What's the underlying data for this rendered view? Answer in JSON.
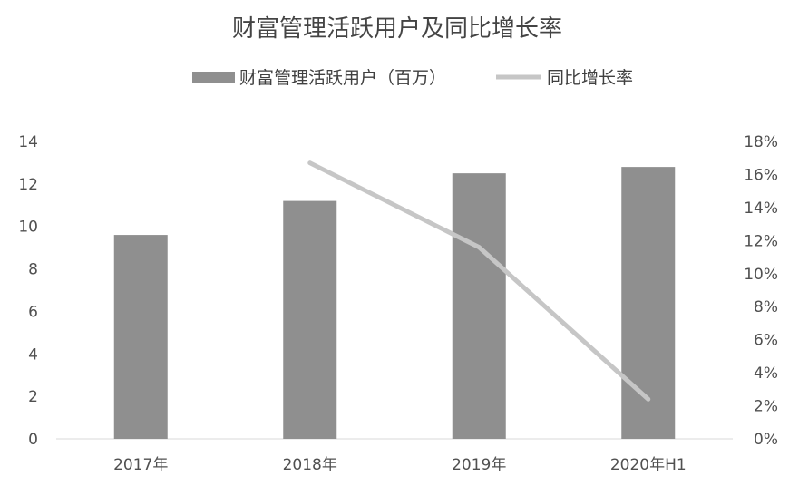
{
  "chart_data": {
    "type": "bar",
    "title": "财富管理活跃用户及同比增长率",
    "categories": [
      "2017年",
      "2018年",
      "2019年",
      "2020年H1"
    ],
    "series": [
      {
        "name": "财富管理活跃用户（百万）",
        "type": "bar",
        "axis": "left",
        "color": "#8f8f8f",
        "values": [
          9.6,
          11.2,
          12.5,
          12.8
        ]
      },
      {
        "name": "同比增长率",
        "type": "line",
        "axis": "right",
        "color": "#c6c6c6",
        "values": [
          null,
          16.7,
          11.6,
          2.4
        ]
      }
    ],
    "y_left": {
      "ylim": [
        0,
        14
      ],
      "ticks": [
        "0",
        "2",
        "4",
        "6",
        "8",
        "10",
        "12",
        "14"
      ]
    },
    "y_right": {
      "ylim": [
        0,
        18
      ],
      "unit": "%",
      "ticks": [
        "0%",
        "2%",
        "4%",
        "6%",
        "8%",
        "10%",
        "12%",
        "14%",
        "16%",
        "18%"
      ]
    },
    "legend_position": "top-center",
    "grid": false
  }
}
